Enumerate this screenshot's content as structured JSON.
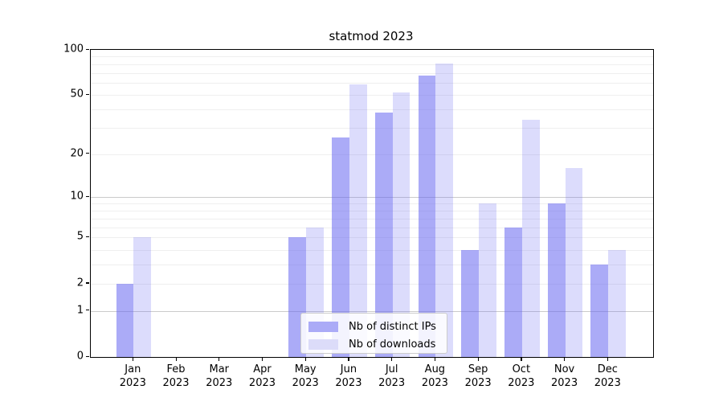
{
  "chart_data": {
    "type": "bar",
    "title": "statmod 2023",
    "year_label": "2023",
    "categories": [
      "Jan",
      "Feb",
      "Mar",
      "Apr",
      "May",
      "Jun",
      "Jul",
      "Aug",
      "Sep",
      "Oct",
      "Nov",
      "Dec"
    ],
    "series": [
      {
        "name": "Nb of distinct IPs",
        "color": "rgba(102,102,240,0.55)",
        "color_on_white": "#ababf7",
        "values": [
          2,
          0,
          0,
          0,
          5,
          26,
          38,
          67,
          4,
          6,
          9,
          3
        ]
      },
      {
        "name": "Nb of downloads",
        "color": "rgba(102,102,240,0.23)",
        "color_on_white": "#dcdcf9",
        "values": [
          5,
          0,
          0,
          0,
          6,
          59,
          52,
          81,
          9,
          34,
          16,
          4
        ]
      }
    ],
    "yscale": "log1p",
    "ylim": [
      0,
      100
    ],
    "yticks": [
      {
        "value": 100,
        "label": "100"
      },
      {
        "value": 50,
        "label": "50"
      },
      {
        "value": 20,
        "label": "20"
      },
      {
        "value": 10,
        "label": "10"
      },
      {
        "value": 5,
        "label": "5"
      },
      {
        "value": 2,
        "label": "2"
      },
      {
        "value": 1,
        "label": "1"
      },
      {
        "value": 0,
        "label": "0"
      }
    ],
    "grid": {
      "major_values": [
        1,
        10
      ],
      "minor_values": [
        2,
        3,
        4,
        5,
        6,
        7,
        8,
        9,
        20,
        30,
        40,
        50,
        60,
        70,
        80,
        90
      ]
    },
    "legend": {
      "position": "lower center"
    },
    "colors": {
      "background": "#ffffff",
      "spine": "#000000",
      "grid_major": "#cbcbcb",
      "grid_minor": "#efefef",
      "text": "#000000"
    }
  }
}
